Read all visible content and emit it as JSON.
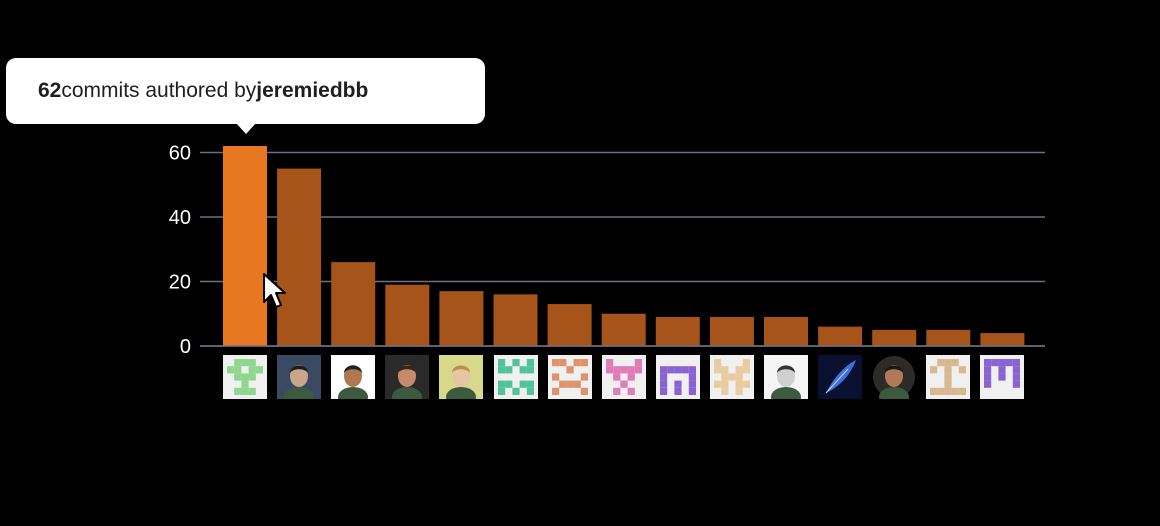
{
  "tooltip": {
    "count": "62",
    "middle": " commits authored by ",
    "author": "jeremiedbb"
  },
  "colors": {
    "background": "#000000",
    "bar": "#a65419",
    "bar_highlight": "#e87722",
    "gridline": "#6e6e80",
    "text": "#ffffff"
  },
  "chart_data": {
    "type": "bar",
    "categories": [
      "jeremiedbb",
      "",
      "",
      "",
      "",
      "",
      "",
      "",
      "",
      "",
      "",
      "",
      "",
      "",
      ""
    ],
    "values": [
      62,
      55,
      26,
      19,
      17,
      16,
      13,
      10,
      9,
      9,
      9,
      6,
      5,
      5,
      4
    ],
    "highlighted_index": 0,
    "yticks": [
      0,
      20,
      40,
      60
    ],
    "ylim": [
      0,
      62
    ],
    "grid": true,
    "title": "",
    "xlabel": "",
    "ylabel": ""
  },
  "avatars": [
    {
      "icon": "identicon-green",
      "kind": "identicon",
      "fg": "#8fd68f",
      "bg": "#f0f0f0"
    },
    {
      "icon": "photo-avatar",
      "kind": "photo",
      "bg": "#3b4a63",
      "skin": "#c9a58a",
      "hair": "#1e1e1e"
    },
    {
      "icon": "cartoon-avatar",
      "kind": "photo",
      "bg": "#ffffff",
      "skin": "#b07850",
      "hair": "#222222"
    },
    {
      "icon": "photo-avatar",
      "kind": "photo",
      "bg": "#2a2a2a",
      "skin": "#c58a6a",
      "hair": "#3a2618"
    },
    {
      "icon": "photo-avatar",
      "kind": "photo",
      "bg": "#d8d88a",
      "skin": "#e8c4a0",
      "hair": "#b89050"
    },
    {
      "icon": "identicon-teal",
      "kind": "identicon",
      "fg": "#4fc49a",
      "bg": "#f0f0f0"
    },
    {
      "icon": "identicon-orange",
      "kind": "identicon",
      "fg": "#e0926a",
      "bg": "#f0f0f0"
    },
    {
      "icon": "identicon-pink",
      "kind": "identicon",
      "fg": "#e07ab8",
      "bg": "#f0f0f0"
    },
    {
      "icon": "identicon-purple",
      "kind": "identicon",
      "fg": "#8a63d2",
      "bg": "#f0f0f0"
    },
    {
      "icon": "identicon-tan",
      "kind": "identicon",
      "fg": "#e8cba0",
      "bg": "#f0f0f0"
    },
    {
      "icon": "sketch-avatar",
      "kind": "photo",
      "bg": "#f5f5f5",
      "skin": "#cfcfcf",
      "hair": "#333333"
    },
    {
      "icon": "feather-quill-icon",
      "kind": "feather",
      "bg": "#0a1030",
      "fg": "#3f6fd8"
    },
    {
      "icon": "photo-avatar",
      "kind": "photo-round",
      "bg": "#2e2a28",
      "skin": "#b07a58",
      "hair": "#1a1a1a"
    },
    {
      "icon": "identicon-tan",
      "kind": "identicon",
      "fg": "#d8b890",
      "bg": "#f0f0f0"
    },
    {
      "icon": "identicon-purple",
      "kind": "identicon",
      "fg": "#8a63d2",
      "bg": "#f0f0f0"
    }
  ]
}
